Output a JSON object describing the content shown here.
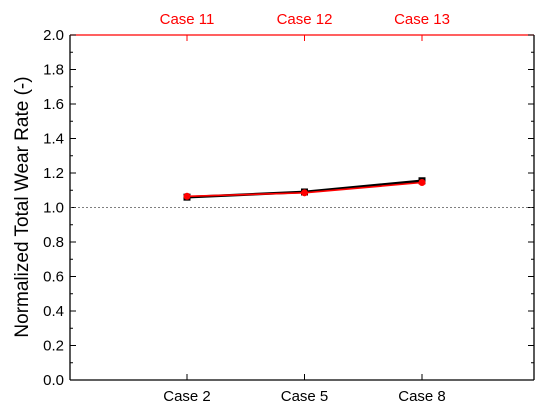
{
  "chart_data": {
    "type": "line",
    "categories_bottom": [
      "Case 2",
      "Case 5",
      "Case 8"
    ],
    "categories_top": [
      "Case 11",
      "Case 12",
      "Case 13"
    ],
    "ylabel": "Normalized Total Wear Rate (-)",
    "ylim": [
      0.0,
      2.0
    ],
    "yticks": [
      "0.0",
      "0.2",
      "0.4",
      "0.6",
      "0.8",
      "1.0",
      "1.2",
      "1.4",
      "1.6",
      "1.8",
      "2.0"
    ],
    "reference_line": 1.0,
    "grid": false,
    "series": [
      {
        "axis": "bottom",
        "color": "#000000",
        "marker": "square",
        "values": [
          1.06,
          1.09,
          1.155
        ]
      },
      {
        "axis": "top",
        "color": "#ff0000",
        "marker": "circle",
        "values": [
          1.065,
          1.085,
          1.145
        ]
      }
    ],
    "colors": {
      "top_axis": "#ff0000",
      "reference_line": "#555555"
    }
  }
}
